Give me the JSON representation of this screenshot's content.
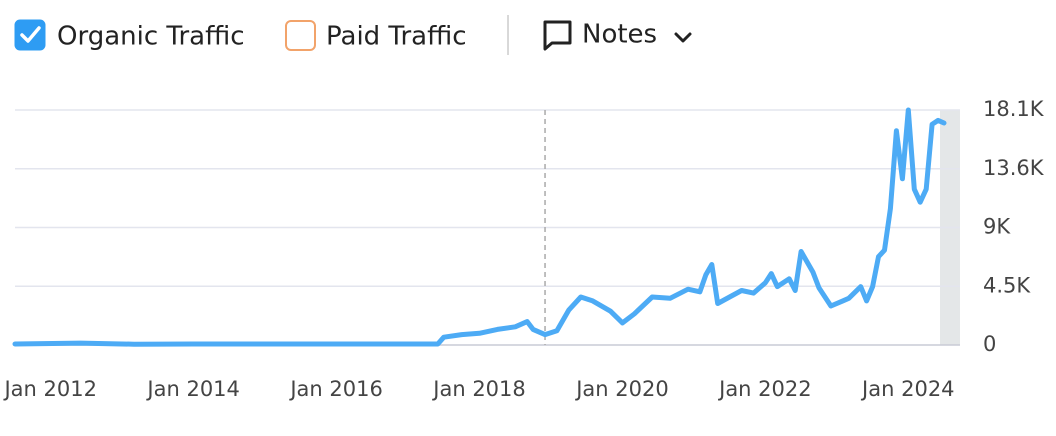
{
  "chart_data": {
    "type": "line",
    "legend": [
      {
        "name": "Organic Traffic",
        "checked": true,
        "color": "#2e9cf3"
      },
      {
        "name": "Paid Traffic",
        "checked": false,
        "color": "#f2a36a"
      }
    ],
    "notes": "Notes",
    "x": [
      "2011-07",
      "2012-06",
      "2013-03",
      "2014-01",
      "2015-06",
      "2016-06",
      "2017-06",
      "2017-07",
      "2017-10",
      "2018-01",
      "2018-04",
      "2018-07",
      "2018-09",
      "2018-10",
      "2018-12",
      "2019-02",
      "2019-04",
      "2019-06",
      "2019-08",
      "2019-11",
      "2020-01",
      "2020-03",
      "2020-06",
      "2020-09",
      "2020-12",
      "2021-02",
      "2021-03",
      "2021-04",
      "2021-05",
      "2021-07",
      "2021-09",
      "2021-11",
      "2022-01",
      "2022-02",
      "2022-03",
      "2022-05",
      "2022-06",
      "2022-07",
      "2022-09",
      "2022-10",
      "2022-12",
      "2023-02",
      "2023-03",
      "2023-05",
      "2023-06",
      "2023-07",
      "2023-08",
      "2023-09",
      "2023-10",
      "2023-11",
      "2023-12",
      "2024-01",
      "2024-02",
      "2024-03",
      "2024-04",
      "2024-05",
      "2024-06",
      "2024-07"
    ],
    "series": [
      {
        "color": "#4dabf5",
        "values": [
          80,
          150,
          60,
          80,
          80,
          80,
          80,
          600,
          800,
          900,
          1200,
          1400,
          1800,
          1200,
          800,
          1100,
          2700,
          3700,
          3400,
          2600,
          1700,
          2400,
          3700,
          3600,
          4300,
          4100,
          5400,
          6200,
          3200,
          3700,
          4200,
          4000,
          4800,
          5500,
          4500,
          5100,
          4200,
          7200,
          5600,
          4400,
          3000,
          3400,
          3600,
          4500,
          3400,
          4500,
          6800,
          7300,
          10500,
          16500,
          12800,
          18100,
          12000,
          11000,
          12000,
          17000,
          17300,
          17100
        ]
      }
    ],
    "xlim": [
      "2011-07",
      "2024-08"
    ],
    "xticks": [
      {
        "value": "2012-01",
        "label": "Jan 2012"
      },
      {
        "value": "2014-01",
        "label": "Jan 2014"
      },
      {
        "value": "2016-01",
        "label": "Jan 2016"
      },
      {
        "value": "2018-01",
        "label": "Jan 2018"
      },
      {
        "value": "2020-01",
        "label": "Jan 2020"
      },
      {
        "value": "2022-01",
        "label": "Jan 2022"
      },
      {
        "value": "2024-01",
        "label": "Jan 2024"
      }
    ],
    "ylim": [
      0,
      18100
    ],
    "yticks": [
      0,
      {
        "value": 4525,
        "label": "4.5K"
      },
      {
        "value": 9050,
        "label": "9K"
      },
      {
        "value": 13575,
        "label": "13.6K"
      },
      {
        "value": 18100,
        "label": "18.1K"
      }
    ],
    "grid": true,
    "reference_line_x": "2018-12"
  }
}
